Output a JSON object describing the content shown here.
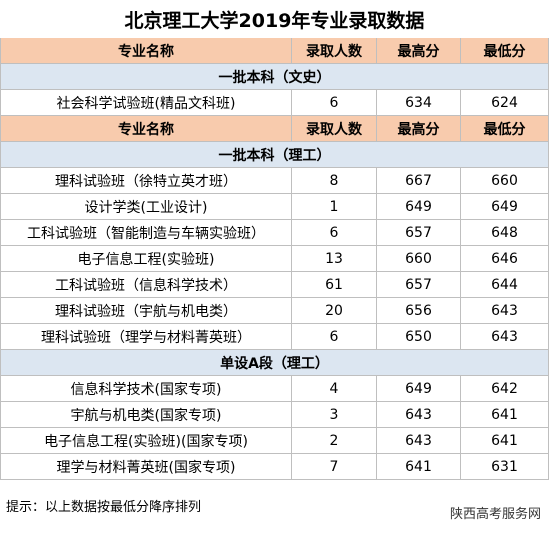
{
  "title": "北京理工大学2019年专业录取数据",
  "table": {
    "blocks": [
      {
        "header": [
          "专业名称",
          "录取人数",
          "最高分",
          "最低分"
        ],
        "section": "一批本科（文史）",
        "rows": [
          [
            "社会科学试验班(精品文科班)",
            6,
            634,
            624
          ]
        ]
      },
      {
        "header": [
          "专业名称",
          "录取人数",
          "最高分",
          "最低分"
        ],
        "section": "一批本科（理工）",
        "rows": [
          [
            "理科试验班（徐特立英才班）",
            8,
            667,
            660
          ],
          [
            "设计学类(工业设计)",
            1,
            649,
            649
          ],
          [
            "工科试验班（智能制造与车辆实验班）",
            6,
            657,
            648
          ],
          [
            "电子信息工程(实验班)",
            13,
            660,
            646
          ],
          [
            "工科试验班（信息科学技术）",
            61,
            657,
            644
          ],
          [
            "理科试验班（宇航与机电类）",
            20,
            656,
            643
          ],
          [
            "理科试验班（理学与材料菁英班）",
            6,
            650,
            643
          ]
        ]
      },
      {
        "section": "单设A段（理工）",
        "rows": [
          [
            "信息科学技术(国家专项)",
            4,
            649,
            642
          ],
          [
            "宇航与机电类(国家专项)",
            3,
            643,
            641
          ],
          [
            "电子信息工程(实验班)(国家专项)",
            2,
            643,
            641
          ],
          [
            "理学与材料菁英班(国家专项)",
            7,
            641,
            631
          ]
        ]
      }
    ]
  },
  "footer": {
    "note": "提示：以上数据按最低分降序排列",
    "brand": "陕西高考服务网"
  }
}
